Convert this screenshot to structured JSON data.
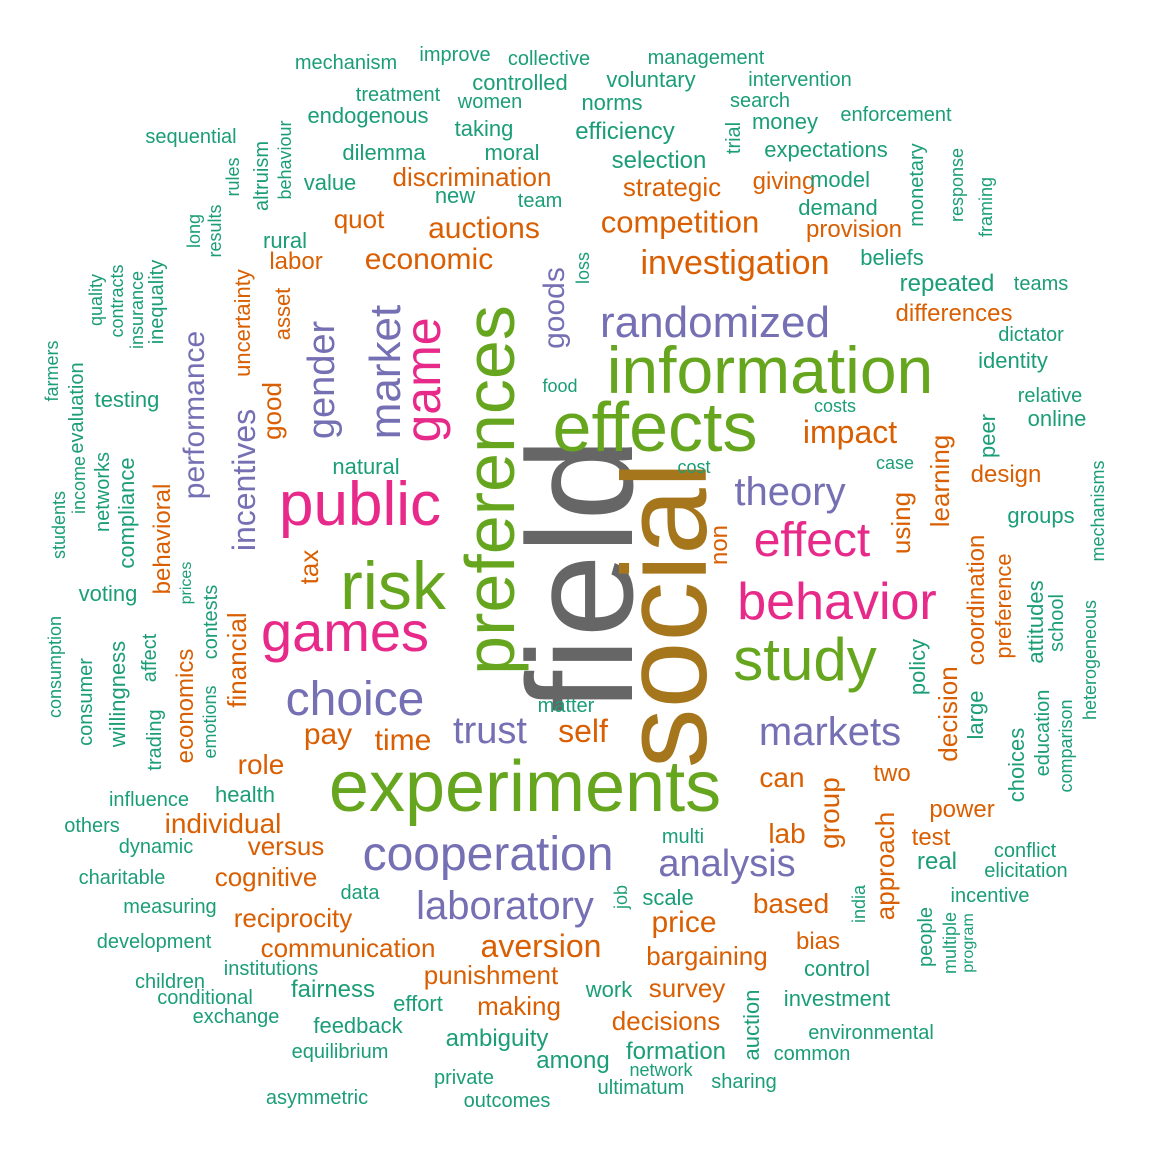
{
  "palette": {
    "teal": "#1b9e77",
    "orange": "#d95f02",
    "purple": "#7570b3",
    "magenta": "#e7298a",
    "green": "#66a61e",
    "brown": "#a6761d",
    "gray": "#666666"
  },
  "words": [
    {
      "text": "field",
      "color": "gray"
    },
    {
      "text": "social",
      "color": "brown"
    },
    {
      "text": "experiments",
      "color": "green"
    },
    {
      "text": "preferences",
      "color": "green"
    },
    {
      "text": "information",
      "color": "green"
    },
    {
      "text": "effects",
      "color": "green"
    },
    {
      "text": "risk",
      "color": "green"
    },
    {
      "text": "public",
      "color": "magenta"
    },
    {
      "text": "study",
      "color": "green"
    },
    {
      "text": "behavior",
      "color": "magenta"
    },
    {
      "text": "games",
      "color": "magenta"
    },
    {
      "text": "game",
      "color": "magenta"
    },
    {
      "text": "cooperation",
      "color": "purple"
    },
    {
      "text": "choice",
      "color": "purple"
    },
    {
      "text": "market",
      "color": "purple"
    },
    {
      "text": "effect",
      "color": "magenta"
    },
    {
      "text": "randomized",
      "color": "purple"
    },
    {
      "text": "markets",
      "color": "purple"
    },
    {
      "text": "laboratory",
      "color": "purple"
    },
    {
      "text": "analysis",
      "color": "purple"
    },
    {
      "text": "theory",
      "color": "purple"
    },
    {
      "text": "trust",
      "color": "purple"
    },
    {
      "text": "gender",
      "color": "purple"
    },
    {
      "text": "investigation",
      "color": "orange"
    },
    {
      "text": "incentives",
      "color": "purple"
    },
    {
      "text": "goods",
      "color": "purple"
    },
    {
      "text": "performance",
      "color": "purple"
    },
    {
      "text": "competition",
      "color": "orange"
    },
    {
      "text": "aversion",
      "color": "orange"
    },
    {
      "text": "auctions",
      "color": "orange"
    },
    {
      "text": "economic",
      "color": "orange"
    },
    {
      "text": "impact",
      "color": "orange"
    },
    {
      "text": "self",
      "color": "orange"
    },
    {
      "text": "time",
      "color": "orange"
    },
    {
      "text": "pay",
      "color": "orange"
    },
    {
      "text": "role",
      "color": "orange"
    },
    {
      "text": "individual",
      "color": "orange"
    },
    {
      "text": "price",
      "color": "orange"
    },
    {
      "text": "based",
      "color": "orange"
    },
    {
      "text": "lab",
      "color": "orange"
    },
    {
      "text": "can",
      "color": "orange"
    },
    {
      "text": "two",
      "color": "orange"
    },
    {
      "text": "power",
      "color": "orange"
    },
    {
      "text": "test",
      "color": "orange"
    },
    {
      "text": "design",
      "color": "orange"
    },
    {
      "text": "group",
      "color": "orange"
    },
    {
      "text": "approach",
      "color": "orange"
    },
    {
      "text": "decision",
      "color": "orange"
    },
    {
      "text": "learning",
      "color": "orange"
    },
    {
      "text": "using",
      "color": "orange"
    },
    {
      "text": "non",
      "color": "orange"
    },
    {
      "text": "coordination",
      "color": "orange"
    },
    {
      "text": "preference",
      "color": "orange"
    },
    {
      "text": "financial",
      "color": "orange"
    },
    {
      "text": "tax",
      "color": "orange"
    },
    {
      "text": "good",
      "color": "orange"
    },
    {
      "text": "uncertainty",
      "color": "orange"
    },
    {
      "text": "asset",
      "color": "orange"
    },
    {
      "text": "labor",
      "color": "orange"
    },
    {
      "text": "quot",
      "color": "orange"
    },
    {
      "text": "discrimination",
      "color": "orange"
    },
    {
      "text": "strategic",
      "color": "orange"
    },
    {
      "text": "giving",
      "color": "orange"
    },
    {
      "text": "provision",
      "color": "orange"
    },
    {
      "text": "differences",
      "color": "orange"
    },
    {
      "text": "cognitive",
      "color": "orange"
    },
    {
      "text": "versus",
      "color": "orange"
    },
    {
      "text": "reciprocity",
      "color": "orange"
    },
    {
      "text": "communication",
      "color": "orange"
    },
    {
      "text": "punishment",
      "color": "orange"
    },
    {
      "text": "making",
      "color": "orange"
    },
    {
      "text": "decisions",
      "color": "orange"
    },
    {
      "text": "survey",
      "color": "orange"
    },
    {
      "text": "bargaining",
      "color": "orange"
    },
    {
      "text": "bias",
      "color": "orange"
    },
    {
      "text": "behavioral",
      "color": "orange"
    },
    {
      "text": "economics",
      "color": "orange"
    },
    {
      "text": "mechanism",
      "color": "teal"
    },
    {
      "text": "improve",
      "color": "teal"
    },
    {
      "text": "collective",
      "color": "teal"
    },
    {
      "text": "management",
      "color": "teal"
    },
    {
      "text": "controlled",
      "color": "teal"
    },
    {
      "text": "voluntary",
      "color": "teal"
    },
    {
      "text": "intervention",
      "color": "teal"
    },
    {
      "text": "treatment",
      "color": "teal"
    },
    {
      "text": "women",
      "color": "teal"
    },
    {
      "text": "norms",
      "color": "teal"
    },
    {
      "text": "search",
      "color": "teal"
    },
    {
      "text": "endogenous",
      "color": "teal"
    },
    {
      "text": "money",
      "color": "teal"
    },
    {
      "text": "enforcement",
      "color": "teal"
    },
    {
      "text": "sequential",
      "color": "teal"
    },
    {
      "text": "taking",
      "color": "teal"
    },
    {
      "text": "efficiency",
      "color": "teal"
    },
    {
      "text": "dilemma",
      "color": "teal"
    },
    {
      "text": "moral",
      "color": "teal"
    },
    {
      "text": "selection",
      "color": "teal"
    },
    {
      "text": "expectations",
      "color": "teal"
    },
    {
      "text": "value",
      "color": "teal"
    },
    {
      "text": "new",
      "color": "teal"
    },
    {
      "text": "team",
      "color": "teal"
    },
    {
      "text": "model",
      "color": "teal"
    },
    {
      "text": "demand",
      "color": "teal"
    },
    {
      "text": "rural",
      "color": "teal"
    },
    {
      "text": "beliefs",
      "color": "teal"
    },
    {
      "text": "repeated",
      "color": "teal"
    },
    {
      "text": "teams",
      "color": "teal"
    },
    {
      "text": "dictator",
      "color": "teal"
    },
    {
      "text": "identity",
      "color": "teal"
    },
    {
      "text": "relative",
      "color": "teal"
    },
    {
      "text": "online",
      "color": "teal"
    },
    {
      "text": "food",
      "color": "teal"
    },
    {
      "text": "costs",
      "color": "teal"
    },
    {
      "text": "testing",
      "color": "teal"
    },
    {
      "text": "natural",
      "color": "teal"
    },
    {
      "text": "cost",
      "color": "teal"
    },
    {
      "text": "case",
      "color": "teal"
    },
    {
      "text": "groups",
      "color": "teal"
    },
    {
      "text": "voting",
      "color": "teal"
    },
    {
      "text": "matter",
      "color": "teal"
    },
    {
      "text": "influence",
      "color": "teal"
    },
    {
      "text": "health",
      "color": "teal"
    },
    {
      "text": "others",
      "color": "teal"
    },
    {
      "text": "multi",
      "color": "teal"
    },
    {
      "text": "dynamic",
      "color": "teal"
    },
    {
      "text": "conflict",
      "color": "teal"
    },
    {
      "text": "real",
      "color": "teal"
    },
    {
      "text": "elicitation",
      "color": "teal"
    },
    {
      "text": "charitable",
      "color": "teal"
    },
    {
      "text": "data",
      "color": "teal"
    },
    {
      "text": "scale",
      "color": "teal"
    },
    {
      "text": "incentive",
      "color": "teal"
    },
    {
      "text": "measuring",
      "color": "teal"
    },
    {
      "text": "development",
      "color": "teal"
    },
    {
      "text": "control",
      "color": "teal"
    },
    {
      "text": "institutions",
      "color": "teal"
    },
    {
      "text": "children",
      "color": "teal"
    },
    {
      "text": "fairness",
      "color": "teal"
    },
    {
      "text": "conditional",
      "color": "teal"
    },
    {
      "text": "work",
      "color": "teal"
    },
    {
      "text": "investment",
      "color": "teal"
    },
    {
      "text": "effort",
      "color": "teal"
    },
    {
      "text": "exchange",
      "color": "teal"
    },
    {
      "text": "feedback",
      "color": "teal"
    },
    {
      "text": "environmental",
      "color": "teal"
    },
    {
      "text": "ambiguity",
      "color": "teal"
    },
    {
      "text": "equilibrium",
      "color": "teal"
    },
    {
      "text": "formation",
      "color": "teal"
    },
    {
      "text": "common",
      "color": "teal"
    },
    {
      "text": "among",
      "color": "teal"
    },
    {
      "text": "network",
      "color": "teal"
    },
    {
      "text": "private",
      "color": "teal"
    },
    {
      "text": "sharing",
      "color": "teal"
    },
    {
      "text": "ultimatum",
      "color": "teal"
    },
    {
      "text": "asymmetric",
      "color": "teal"
    },
    {
      "text": "outcomes",
      "color": "teal"
    },
    {
      "text": "trial",
      "color": "teal"
    },
    {
      "text": "altruism",
      "color": "teal"
    },
    {
      "text": "behaviour",
      "color": "teal"
    },
    {
      "text": "rules",
      "color": "teal"
    },
    {
      "text": "monetary",
      "color": "teal"
    },
    {
      "text": "response",
      "color": "teal"
    },
    {
      "text": "framing",
      "color": "teal"
    },
    {
      "text": "long",
      "color": "teal"
    },
    {
      "text": "results",
      "color": "teal"
    },
    {
      "text": "quality",
      "color": "teal"
    },
    {
      "text": "contracts",
      "color": "teal"
    },
    {
      "text": "insurance",
      "color": "teal"
    },
    {
      "text": "inequality",
      "color": "teal"
    },
    {
      "text": "farmers",
      "color": "teal"
    },
    {
      "text": "evaluation",
      "color": "teal"
    },
    {
      "text": "income",
      "color": "teal"
    },
    {
      "text": "students",
      "color": "teal"
    },
    {
      "text": "networks",
      "color": "teal"
    },
    {
      "text": "compliance",
      "color": "teal"
    },
    {
      "text": "loss",
      "color": "teal"
    },
    {
      "text": "peer",
      "color": "teal"
    },
    {
      "text": "mechanisms",
      "color": "teal"
    },
    {
      "text": "attitudes",
      "color": "teal"
    },
    {
      "text": "school",
      "color": "teal"
    },
    {
      "text": "heterogeneous",
      "color": "teal"
    },
    {
      "text": "education",
      "color": "teal"
    },
    {
      "text": "comparison",
      "color": "teal"
    },
    {
      "text": "choices",
      "color": "teal"
    },
    {
      "text": "large",
      "color": "teal"
    },
    {
      "text": "policy",
      "color": "teal"
    },
    {
      "text": "prices",
      "color": "teal"
    },
    {
      "text": "contests",
      "color": "teal"
    },
    {
      "text": "consumption",
      "color": "teal"
    },
    {
      "text": "consumer",
      "color": "teal"
    },
    {
      "text": "willingness",
      "color": "teal"
    },
    {
      "text": "affect",
      "color": "teal"
    },
    {
      "text": "trading",
      "color": "teal"
    },
    {
      "text": "emotions",
      "color": "teal"
    },
    {
      "text": "job",
      "color": "teal"
    },
    {
      "text": "india",
      "color": "teal"
    },
    {
      "text": "people",
      "color": "teal"
    },
    {
      "text": "multiple",
      "color": "teal"
    },
    {
      "text": "program",
      "color": "teal"
    },
    {
      "text": "auction",
      "color": "teal"
    }
  ]
}
